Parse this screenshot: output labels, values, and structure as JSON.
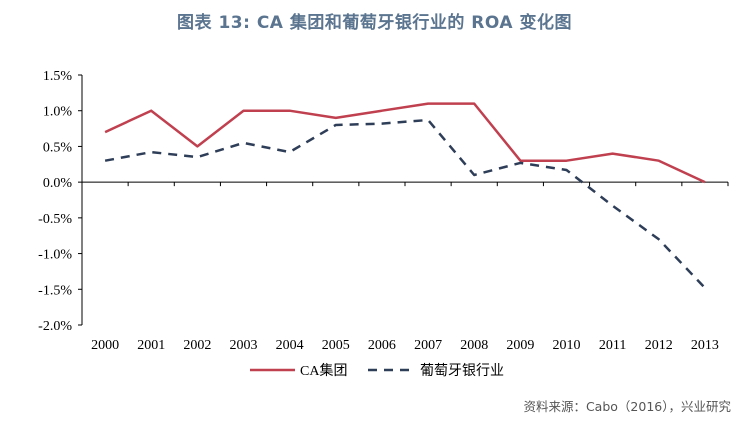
{
  "title": "图表 13: CA 集团和葡萄牙银行业的 ROA 变化图",
  "source": "资料来源：Cabo（2016），兴业研究",
  "chart_data": {
    "type": "line",
    "title": "图表 13: CA 集团和葡萄牙银行业的 ROA 变化图",
    "xlabel": "",
    "ylabel": "",
    "categories": [
      "2000",
      "2001",
      "2002",
      "2003",
      "2004",
      "2005",
      "2006",
      "2007",
      "2008",
      "2009",
      "2010",
      "2011",
      "2012",
      "2013"
    ],
    "ylim": [
      -2.0,
      1.5
    ],
    "yticks": [
      1.5,
      1.0,
      0.5,
      0.0,
      -0.5,
      -1.0,
      -1.5,
      -2.0
    ],
    "ytick_labels": [
      "1.5%",
      "1.0%",
      "0.5%",
      "0.0%",
      "-0.5%",
      "-1.0%",
      "-1.5%",
      "-2.0%"
    ],
    "unit": "%",
    "grid": false,
    "legend_position": "bottom",
    "series": [
      {
        "name": "CA集团",
        "style": "solid",
        "color": "#C0404F",
        "values": [
          0.7,
          1.0,
          0.5,
          1.0,
          1.0,
          0.9,
          1.0,
          1.1,
          1.1,
          0.3,
          0.3,
          0.4,
          0.3,
          0.0
        ]
      },
      {
        "name": "葡萄牙银行业",
        "style": "dashed",
        "color": "#2F3E58",
        "values": [
          0.3,
          0.42,
          0.35,
          0.55,
          0.42,
          0.8,
          0.82,
          0.87,
          0.1,
          0.27,
          0.17,
          -0.33,
          -0.8,
          -1.48
        ]
      }
    ]
  }
}
